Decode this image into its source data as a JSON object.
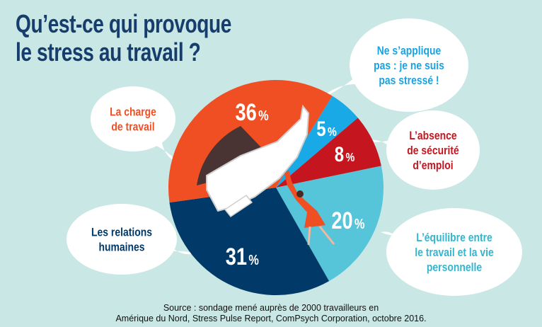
{
  "title_lines": [
    "Qu’est-ce qui provoque",
    "le stress au travail ?"
  ],
  "chart_data": {
    "type": "pie",
    "title": "Qu’est-ce qui provoque le stress au travail ?",
    "unit": "%",
    "slices": [
      {
        "label": "Ne s’applique pas : je ne suis pas stressé !",
        "label_lines": [
          "Ne s’applique",
          "pas : je ne suis",
          "pas stressé !"
        ],
        "value": 5,
        "color": "#19a9e6",
        "text_color": "#1aa3e0"
      },
      {
        "label": "L’absence de sécurité d’emploi",
        "label_lines": [
          "L’absence",
          "de sécurité",
          "d’emploi"
        ],
        "value": 8,
        "color": "#c5161f",
        "text_color": "#c5161f"
      },
      {
        "label": "L’équilibre entre le travail et la vie personnelle",
        "label_lines": [
          "L’équilibre entre",
          "le travail et la vie",
          "personnelle"
        ],
        "value": 20,
        "color": "#56c4d9",
        "text_color": "#35b6cf"
      },
      {
        "label": "Les relations humaines",
        "label_lines": [
          "Les relations",
          "humaines"
        ],
        "value": 31,
        "color": "#013a68",
        "text_color": "#013a68"
      },
      {
        "label": "La charge de travail",
        "label_lines": [
          "La charge",
          "de travail"
        ],
        "value": 36,
        "color": "#f04f24",
        "text_color": "#f04f24"
      }
    ]
  },
  "source_lines": [
    "Source : sondage mené auprès de 2000 travailleurs en",
    "Amérique du Nord, Stress Pulse Report, ComPsych Corporation, octobre 2016."
  ]
}
